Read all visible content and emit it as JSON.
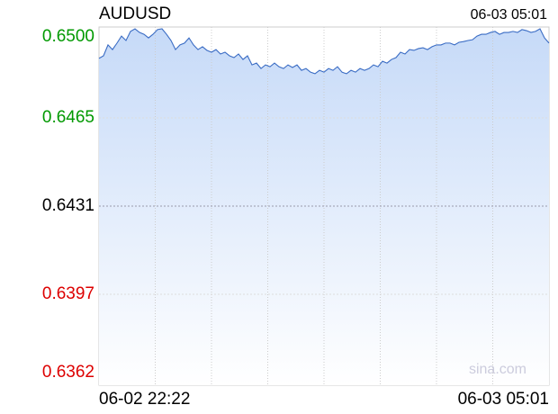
{
  "chart_data": {
    "type": "area",
    "title": "AUDUSD",
    "time": "06-03 05:01",
    "watermark": "sina.com",
    "categories": [
      "06-02 22:22",
      null,
      null,
      null,
      null,
      null,
      null,
      null,
      null,
      null,
      null,
      null,
      null,
      null,
      null,
      null,
      null,
      null,
      null,
      null,
      null,
      null,
      null,
      null,
      null,
      null,
      null,
      null,
      null,
      null,
      null,
      null,
      null,
      null,
      null,
      null,
      null,
      null,
      null,
      null,
      null,
      null,
      null,
      null,
      null,
      null,
      null,
      null,
      null,
      null,
      null,
      null,
      null,
      null,
      null,
      null,
      null,
      null,
      null,
      null,
      null,
      null,
      null,
      null,
      null,
      null,
      null,
      null,
      null,
      null,
      null,
      null,
      null,
      null,
      null,
      null,
      null,
      null,
      null,
      null,
      null,
      null,
      null,
      null,
      null,
      null,
      null,
      null,
      null,
      null,
      null,
      null,
      null,
      null,
      null,
      null,
      null,
      null,
      null,
      null,
      "06-03 05:01"
    ],
    "series": [
      {
        "color": "#3a6cc4",
        "values": [
          0.64879,
          0.64889,
          0.64931,
          0.64913,
          0.64938,
          0.64965,
          0.64948,
          0.64983,
          0.64993,
          0.64979,
          0.64972,
          0.64958,
          0.64972,
          0.6499,
          0.64993,
          0.64972,
          0.64948,
          0.64913,
          0.64931,
          0.64938,
          0.64958,
          0.64931,
          0.64913,
          0.64924,
          0.6491,
          0.64903,
          0.64913,
          0.64896,
          0.64903,
          0.64889,
          0.64882,
          0.64896,
          0.64875,
          0.64889,
          0.64854,
          0.64861,
          0.6484,
          0.64854,
          0.64847,
          0.64861,
          0.64847,
          0.6484,
          0.64854,
          0.64844,
          0.64854,
          0.64833,
          0.6484,
          0.64826,
          0.6482,
          0.64833,
          0.64826,
          0.6484,
          0.64833,
          0.64847,
          0.64826,
          0.6482,
          0.64833,
          0.64826,
          0.6484,
          0.64833,
          0.6484,
          0.64854,
          0.64847,
          0.64868,
          0.64861,
          0.64875,
          0.64882,
          0.64903,
          0.64896,
          0.64913,
          0.6491,
          0.64917,
          0.6492,
          0.64913,
          0.64924,
          0.64931,
          0.64931,
          0.64938,
          0.64938,
          0.64931,
          0.64941,
          0.64944,
          0.64948,
          0.64951,
          0.64965,
          0.64972,
          0.64972,
          0.64979,
          0.64983,
          0.64972,
          0.64979,
          0.64979,
          0.64983,
          0.64979,
          0.6499,
          0.64986,
          0.64979,
          0.64983,
          0.64993,
          0.64958,
          0.64938
        ]
      }
    ],
    "ylim": [
      0.6362,
      0.65
    ],
    "yticks": [
      {
        "value": 0.65,
        "label": "0.6500"
      },
      0.6465,
      0.6431,
      0.6397,
      0.6362
    ],
    "up_color": "#009900",
    "down_color": "#dd0000",
    "grid": true
  }
}
